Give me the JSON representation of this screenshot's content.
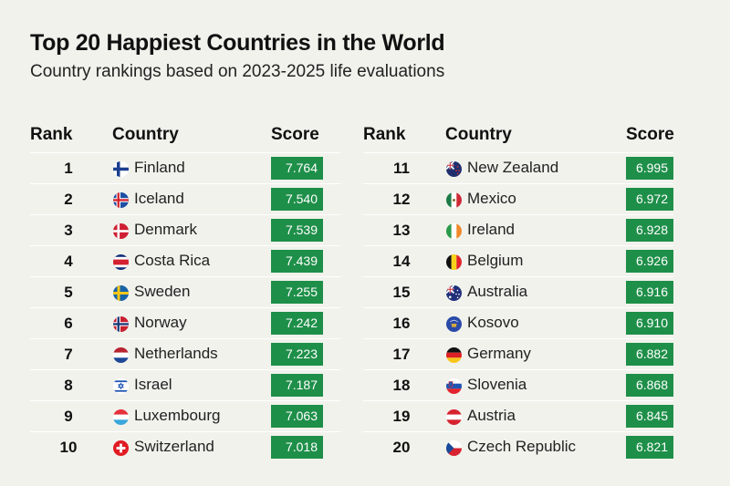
{
  "title": "Top 20 Happiest Countries in the World",
  "subtitle": "Country rankings based on 2023-2025 life evaluations",
  "colors": {
    "score_bg": "#1e8f49",
    "background": "#f1f2ec"
  },
  "chart_data": {
    "type": "table",
    "columns": [
      "Rank",
      "Country",
      "Score"
    ],
    "rows": [
      {
        "rank": "1",
        "country": "Finland",
        "score": "7.764",
        "flag": "finland-flag-icon"
      },
      {
        "rank": "2",
        "country": "Iceland",
        "score": "7.540",
        "flag": "iceland-flag-icon"
      },
      {
        "rank": "3",
        "country": "Denmark",
        "score": "7.539",
        "flag": "denmark-flag-icon"
      },
      {
        "rank": "4",
        "country": "Costa Rica",
        "score": "7.439",
        "flag": "costa-rica-flag-icon"
      },
      {
        "rank": "5",
        "country": "Sweden",
        "score": "7.255",
        "flag": "sweden-flag-icon"
      },
      {
        "rank": "6",
        "country": "Norway",
        "score": "7.242",
        "flag": "norway-flag-icon"
      },
      {
        "rank": "7",
        "country": "Netherlands",
        "score": "7.223",
        "flag": "netherlands-flag-icon"
      },
      {
        "rank": "8",
        "country": "Israel",
        "score": "7.187",
        "flag": "israel-flag-icon"
      },
      {
        "rank": "9",
        "country": "Luxembourg",
        "score": "7.063",
        "flag": "luxembourg-flag-icon"
      },
      {
        "rank": "10",
        "country": "Switzerland",
        "score": "7.018",
        "flag": "switzerland-flag-icon"
      },
      {
        "rank": "11",
        "country": "New Zealand",
        "score": "6.995",
        "flag": "new-zealand-flag-icon"
      },
      {
        "rank": "12",
        "country": "Mexico",
        "score": "6.972",
        "flag": "mexico-flag-icon"
      },
      {
        "rank": "13",
        "country": "Ireland",
        "score": "6.928",
        "flag": "ireland-flag-icon"
      },
      {
        "rank": "14",
        "country": "Belgium",
        "score": "6.926",
        "flag": "belgium-flag-icon"
      },
      {
        "rank": "15",
        "country": "Australia",
        "score": "6.916",
        "flag": "australia-flag-icon"
      },
      {
        "rank": "16",
        "country": "Kosovo",
        "score": "6.910",
        "flag": "kosovo-flag-icon"
      },
      {
        "rank": "17",
        "country": "Germany",
        "score": "6.882",
        "flag": "germany-flag-icon"
      },
      {
        "rank": "18",
        "country": "Slovenia",
        "score": "6.868",
        "flag": "slovenia-flag-icon"
      },
      {
        "rank": "19",
        "country": "Austria",
        "score": "6.845",
        "flag": "austria-flag-icon"
      },
      {
        "rank": "20",
        "country": "Czech Republic",
        "score": "6.821",
        "flag": "czech-republic-flag-icon"
      }
    ]
  }
}
